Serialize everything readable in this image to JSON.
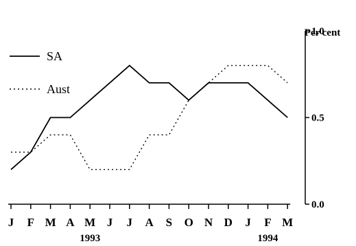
{
  "chart_data": {
    "type": "line",
    "title": "",
    "xlabel": "",
    "ylabel": "Per cent",
    "categories": [
      "J",
      "F",
      "M",
      "A",
      "M",
      "J",
      "J",
      "A",
      "S",
      "O",
      "N",
      "D",
      "J",
      "F",
      "M"
    ],
    "year_labels": [
      {
        "category_index": 4,
        "text": "1993"
      },
      {
        "category_index": 13,
        "text": "1994"
      }
    ],
    "yaxis_side": "right",
    "ylim": [
      0.0,
      1.0
    ],
    "yticks": [
      0.0,
      0.5,
      1.0
    ],
    "ytick_labels": [
      "0.0",
      "0.5",
      "1.0"
    ],
    "grid": false,
    "legend_position": "left",
    "series": [
      {
        "name": "SA",
        "line_style": "solid",
        "color": "#000000",
        "values": [
          0.2,
          0.3,
          0.5,
          0.5,
          0.6,
          0.7,
          0.8,
          0.7,
          0.7,
          0.6,
          0.7,
          0.7,
          0.7,
          0.6,
          0.5
        ]
      },
      {
        "name": "Aust",
        "line_style": "dotted",
        "color": "#000000",
        "values": [
          0.3,
          0.3,
          0.4,
          0.4,
          0.2,
          0.2,
          0.2,
          0.4,
          0.4,
          0.6,
          0.7,
          0.8,
          0.8,
          0.8,
          0.7
        ]
      }
    ]
  }
}
